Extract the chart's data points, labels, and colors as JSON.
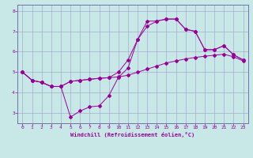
{
  "xlabel": "Windchill (Refroidissement éolien,°C)",
  "xlim": [
    -0.5,
    23.5
  ],
  "ylim": [
    2.5,
    8.3
  ],
  "xticks": [
    0,
    1,
    2,
    3,
    4,
    5,
    6,
    7,
    8,
    9,
    10,
    11,
    12,
    13,
    14,
    15,
    16,
    17,
    18,
    19,
    20,
    21,
    22,
    23
  ],
  "yticks": [
    3,
    4,
    5,
    6,
    7,
    8
  ],
  "bg_color": "#c8e8e8",
  "line_color": "#990099",
  "grid_color": "#a0a0c8",
  "line1_x": [
    0,
    1,
    2,
    3,
    4,
    5,
    6,
    7,
    8,
    9,
    10,
    11,
    12,
    13,
    14,
    15,
    16,
    17,
    18,
    19,
    20,
    21,
    22,
    23
  ],
  "line1_y": [
    5.0,
    4.6,
    4.5,
    4.3,
    4.3,
    2.8,
    3.1,
    3.3,
    3.35,
    3.85,
    4.75,
    5.2,
    6.6,
    7.5,
    7.5,
    7.6,
    7.6,
    7.1,
    7.0,
    6.1,
    6.1,
    6.3,
    5.85,
    5.6
  ],
  "line2_x": [
    0,
    1,
    2,
    3,
    4,
    5,
    6,
    7,
    8,
    9,
    10,
    11,
    12,
    13,
    14,
    15,
    16,
    17,
    18,
    19,
    20,
    21,
    22,
    23
  ],
  "line2_y": [
    5.0,
    4.6,
    4.5,
    4.3,
    4.3,
    4.55,
    4.6,
    4.65,
    4.7,
    4.73,
    4.77,
    4.85,
    5.0,
    5.15,
    5.3,
    5.45,
    5.55,
    5.65,
    5.72,
    5.78,
    5.83,
    5.88,
    5.75,
    5.55
  ],
  "line3_x": [
    0,
    1,
    2,
    3,
    4,
    5,
    6,
    7,
    8,
    9,
    10,
    11,
    12,
    13,
    14,
    15,
    16,
    17,
    18,
    19,
    20,
    21,
    22,
    23
  ],
  "line3_y": [
    5.0,
    4.6,
    4.5,
    4.3,
    4.3,
    4.55,
    4.6,
    4.65,
    4.7,
    4.73,
    5.0,
    5.6,
    6.6,
    7.25,
    7.5,
    7.6,
    7.6,
    7.1,
    7.0,
    6.1,
    6.1,
    6.3,
    5.85,
    5.6
  ]
}
